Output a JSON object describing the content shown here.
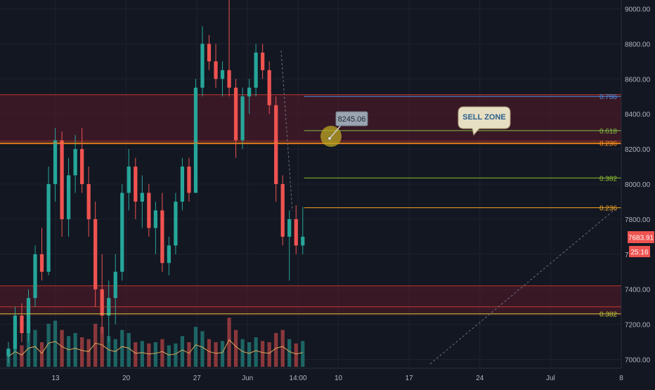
{
  "chart_data": {
    "type": "candlestick",
    "y_axis": {
      "range": [
        6950,
        9050
      ],
      "ticks": [
        "9000.00",
        "8800.00",
        "8600.00",
        "8400.00",
        "8200.00",
        "8000.00",
        "7800.00",
        "7600.00",
        "7400.00",
        "7200.00",
        "7000.00"
      ],
      "tick_values": [
        9000,
        8800,
        8600,
        8400,
        8200,
        8000,
        7800,
        7600,
        7400,
        7200,
        7000
      ]
    },
    "x_axis": {
      "ticks": [
        {
          "label": "13",
          "pos": 13
        },
        {
          "label": "20",
          "pos": 20
        },
        {
          "label": "27",
          "pos": 27
        },
        {
          "label": "Jun",
          "pos": 32
        },
        {
          "label": "14:00",
          "pos": 37
        },
        {
          "label": "10",
          "pos": 41
        },
        {
          "label": "17",
          "pos": 48
        },
        {
          "label": "24",
          "pos": 55
        },
        {
          "label": "Jul",
          "pos": 62
        },
        {
          "label": "8",
          "pos": 69
        }
      ],
      "range": [
        7.5,
        69
      ]
    },
    "price_labels": {
      "last_price": "7683.91",
      "countdown": "25:16"
    },
    "zones": [
      {
        "y1": 8400,
        "y2": 8510,
        "color": "#5a1a2a"
      },
      {
        "y1": 8245,
        "y2": 8400,
        "color": "#5a1a2a"
      },
      {
        "y1": 7300,
        "y2": 7420,
        "color": "#5a1a2a"
      },
      {
        "y1": 7250,
        "y2": 7300,
        "color": "#5a1a2a"
      }
    ],
    "zone_lines": [
      {
        "y": 8510,
        "color": "#c0392b"
      },
      {
        "y": 8245,
        "color": "#c0392b"
      },
      {
        "y": 8230,
        "color": "#e67e22"
      },
      {
        "y": 7420,
        "color": "#c0392b"
      },
      {
        "y": 7300,
        "color": "#c0392b"
      }
    ],
    "fib_levels": [
      {
        "label": "0.786",
        "price": 8500,
        "color": "#4a90e2",
        "x_start": 37.6
      },
      {
        "label": "0.618",
        "price": 8305,
        "color": "#7fbf3f",
        "x_start": 37.6
      },
      {
        "label": "0.236",
        "price": 8235,
        "color": "#ff8c1a",
        "x_start": 7.5
      },
      {
        "label": "0.382",
        "price": 8035,
        "color": "#8fbf2f",
        "x_start": 37.6
      },
      {
        "label": "0.236",
        "price": 7865,
        "color": "#f5a623",
        "x_start": 37.6
      },
      {
        "label": "0.382",
        "price": 7260,
        "color": "#b5c93a",
        "x_start": 7.5
      }
    ],
    "annotations": {
      "price_callout": "8245.06",
      "sell_zone": "SELL ZONE"
    },
    "candles": [
      {
        "o": 7020,
        "h": 7100,
        "l": 6980,
        "c": 7060
      },
      {
        "o": 7060,
        "h": 7300,
        "l": 7040,
        "c": 7250
      },
      {
        "o": 7250,
        "h": 7320,
        "l": 7100,
        "c": 7150
      },
      {
        "o": 7150,
        "h": 7400,
        "l": 7100,
        "c": 7350
      },
      {
        "o": 7350,
        "h": 7650,
        "l": 7300,
        "c": 7600
      },
      {
        "o": 7600,
        "h": 7750,
        "l": 7450,
        "c": 7500
      },
      {
        "o": 7500,
        "h": 8100,
        "l": 7480,
        "c": 8000
      },
      {
        "o": 8000,
        "h": 8320,
        "l": 7900,
        "c": 8250
      },
      {
        "o": 8250,
        "h": 8300,
        "l": 7700,
        "c": 7800
      },
      {
        "o": 7800,
        "h": 8150,
        "l": 7700,
        "c": 8050
      },
      {
        "o": 8050,
        "h": 8280,
        "l": 7950,
        "c": 8200
      },
      {
        "o": 8200,
        "h": 8320,
        "l": 7950,
        "c": 8000
      },
      {
        "o": 8000,
        "h": 8100,
        "l": 7700,
        "c": 7800
      },
      {
        "o": 7800,
        "h": 7900,
        "l": 7300,
        "c": 7400
      },
      {
        "o": 7400,
        "h": 7600,
        "l": 7150,
        "c": 7250
      },
      {
        "o": 7250,
        "h": 7450,
        "l": 7100,
        "c": 7350
      },
      {
        "o": 7350,
        "h": 7600,
        "l": 7200,
        "c": 7500
      },
      {
        "o": 7500,
        "h": 8000,
        "l": 7450,
        "c": 7950
      },
      {
        "o": 7950,
        "h": 8200,
        "l": 7850,
        "c": 8100
      },
      {
        "o": 8100,
        "h": 8150,
        "l": 7800,
        "c": 7900
      },
      {
        "o": 7900,
        "h": 8050,
        "l": 7750,
        "c": 7950
      },
      {
        "o": 7950,
        "h": 8000,
        "l": 7700,
        "c": 7750
      },
      {
        "o": 7750,
        "h": 7900,
        "l": 7600,
        "c": 7850
      },
      {
        "o": 7850,
        "h": 7950,
        "l": 7500,
        "c": 7550
      },
      {
        "o": 7550,
        "h": 7700,
        "l": 7480,
        "c": 7650
      },
      {
        "o": 7650,
        "h": 7950,
        "l": 7600,
        "c": 7900
      },
      {
        "o": 7900,
        "h": 8150,
        "l": 7850,
        "c": 8100
      },
      {
        "o": 8100,
        "h": 8150,
        "l": 7900,
        "c": 7950
      },
      {
        "o": 7950,
        "h": 8600,
        "l": 7950,
        "c": 8550
      },
      {
        "o": 8550,
        "h": 8900,
        "l": 8500,
        "c": 8800
      },
      {
        "o": 8800,
        "h": 8850,
        "l": 8650,
        "c": 8700
      },
      {
        "o": 8700,
        "h": 8800,
        "l": 8550,
        "c": 8600
      },
      {
        "o": 8600,
        "h": 8700,
        "l": 8500,
        "c": 8650
      },
      {
        "o": 8650,
        "h": 9050,
        "l": 8500,
        "c": 8550
      },
      {
        "o": 8550,
        "h": 8600,
        "l": 8150,
        "c": 8250
      },
      {
        "o": 8250,
        "h": 8550,
        "l": 8200,
        "c": 8500
      },
      {
        "o": 8500,
        "h": 8600,
        "l": 8400,
        "c": 8550
      },
      {
        "o": 8550,
        "h": 8800,
        "l": 8500,
        "c": 8750
      },
      {
        "o": 8750,
        "h": 8800,
        "l": 8600,
        "c": 8650
      },
      {
        "o": 8650,
        "h": 8700,
        "l": 8400,
        "c": 8450
      },
      {
        "o": 8450,
        "h": 8500,
        "l": 7900,
        "c": 8000
      },
      {
        "o": 8000,
        "h": 8050,
        "l": 7650,
        "c": 7700
      },
      {
        "o": 7700,
        "h": 7850,
        "l": 7450,
        "c": 7800
      },
      {
        "o": 7800,
        "h": 7880,
        "l": 7600,
        "c": 7650
      },
      {
        "o": 7650,
        "h": 7870,
        "l": 7600,
        "c": 7700
      }
    ],
    "volumes": [
      30,
      45,
      35,
      55,
      60,
      40,
      70,
      75,
      60,
      50,
      55,
      48,
      45,
      70,
      65,
      50,
      45,
      60,
      55,
      40,
      42,
      38,
      40,
      45,
      35,
      38,
      50,
      40,
      65,
      58,
      45,
      40,
      42,
      80,
      60,
      45,
      40,
      48,
      42,
      40,
      55,
      60,
      45,
      38,
      42
    ]
  }
}
